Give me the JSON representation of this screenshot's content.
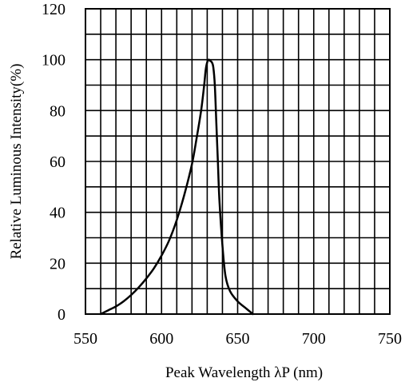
{
  "chart_data": {
    "type": "line",
    "title": "",
    "xlabel": "Peak Wavelength λP (nm)",
    "ylabel": "Relative Luminous Intensity(%)",
    "xlim": [
      550,
      750
    ],
    "ylim": [
      0,
      120
    ],
    "x_ticks": [
      "550",
      "600",
      "650",
      "700",
      "750"
    ],
    "y_ticks": [
      "0",
      "20",
      "40",
      "60",
      "80",
      "100",
      "120"
    ],
    "grid": true,
    "x_grid_step": 10,
    "y_grid_step": 10,
    "legend": "none",
    "series": [
      {
        "color": "#000000",
        "points": [
          [
            560,
            0
          ],
          [
            565,
            1.5
          ],
          [
            570,
            3
          ],
          [
            575,
            5
          ],
          [
            580,
            7.5
          ],
          [
            585,
            10.5
          ],
          [
            590,
            14
          ],
          [
            595,
            18
          ],
          [
            600,
            23
          ],
          [
            605,
            29
          ],
          [
            610,
            37
          ],
          [
            615,
            47
          ],
          [
            620,
            59
          ],
          [
            623,
            69
          ],
          [
            626,
            80
          ],
          [
            628,
            90
          ],
          [
            629,
            96
          ],
          [
            630,
            99
          ],
          [
            631,
            100
          ],
          [
            632,
            99.5
          ],
          [
            633,
            99
          ],
          [
            634,
            97
          ],
          [
            635,
            90
          ],
          [
            636,
            75
          ],
          [
            637,
            60
          ],
          [
            638,
            45
          ],
          [
            640,
            27
          ],
          [
            642,
            15
          ],
          [
            645,
            9
          ],
          [
            650,
            5
          ],
          [
            655,
            2.5
          ],
          [
            660,
            0
          ]
        ]
      }
    ]
  }
}
